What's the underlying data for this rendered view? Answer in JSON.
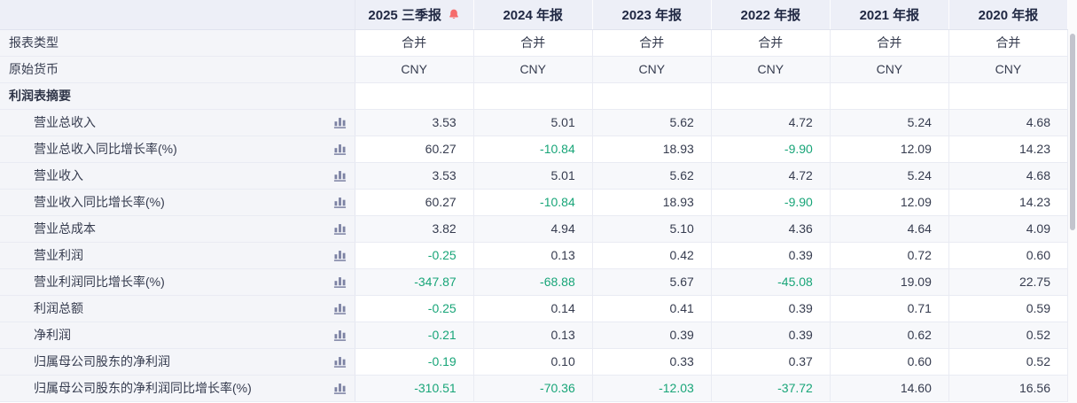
{
  "table": {
    "columns": [
      {
        "label": "2025 三季报",
        "has_alert": true
      },
      {
        "label": "2024 年报",
        "has_alert": false
      },
      {
        "label": "2023 年报",
        "has_alert": false
      },
      {
        "label": "2022 年报",
        "has_alert": false
      },
      {
        "label": "2021 年报",
        "has_alert": false
      },
      {
        "label": "2020 年报",
        "has_alert": false
      }
    ],
    "rows": [
      {
        "type": "info",
        "label": "报表类型",
        "values": [
          "合并",
          "合并",
          "合并",
          "合并",
          "合并",
          "合并"
        ]
      },
      {
        "type": "info",
        "label": "原始货币",
        "values": [
          "CNY",
          "CNY",
          "CNY",
          "CNY",
          "CNY",
          "CNY"
        ]
      },
      {
        "type": "section",
        "label": "利润表摘要",
        "values": [
          "",
          "",
          "",
          "",
          "",
          ""
        ]
      },
      {
        "type": "metric",
        "label": "营业总收入",
        "values": [
          "3.53",
          "5.01",
          "5.62",
          "4.72",
          "5.24",
          "4.68"
        ]
      },
      {
        "type": "metric",
        "label": "营业总收入同比增长率(%)",
        "values": [
          "60.27",
          "-10.84",
          "18.93",
          "-9.90",
          "12.09",
          "14.23"
        ]
      },
      {
        "type": "metric",
        "label": "营业收入",
        "values": [
          "3.53",
          "5.01",
          "5.62",
          "4.72",
          "5.24",
          "4.68"
        ]
      },
      {
        "type": "metric",
        "label": "营业收入同比增长率(%)",
        "values": [
          "60.27",
          "-10.84",
          "18.93",
          "-9.90",
          "12.09",
          "14.23"
        ]
      },
      {
        "type": "metric",
        "label": "营业总成本",
        "values": [
          "3.82",
          "4.94",
          "5.10",
          "4.36",
          "4.64",
          "4.09"
        ]
      },
      {
        "type": "metric",
        "label": "营业利润",
        "values": [
          "-0.25",
          "0.13",
          "0.42",
          "0.39",
          "0.72",
          "0.60"
        ]
      },
      {
        "type": "metric",
        "label": "营业利润同比增长率(%)",
        "values": [
          "-347.87",
          "-68.88",
          "5.67",
          "-45.08",
          "19.09",
          "22.75"
        ]
      },
      {
        "type": "metric",
        "label": "利润总额",
        "values": [
          "-0.25",
          "0.14",
          "0.41",
          "0.39",
          "0.71",
          "0.59"
        ]
      },
      {
        "type": "metric",
        "label": "净利润",
        "values": [
          "-0.21",
          "0.13",
          "0.39",
          "0.39",
          "0.62",
          "0.52"
        ]
      },
      {
        "type": "metric",
        "label": "归属母公司股东的净利润",
        "values": [
          "-0.19",
          "0.10",
          "0.33",
          "0.37",
          "0.60",
          "0.52"
        ]
      },
      {
        "type": "metric",
        "label": "归属母公司股东的净利润同比增长率(%)",
        "values": [
          "-310.51",
          "-70.36",
          "-12.03",
          "-37.72",
          "14.60",
          "16.56"
        ]
      }
    ],
    "icons": {
      "alert_bell": "alert-bell-icon",
      "row_chart": "bar-chart-icon"
    },
    "colors": {
      "negative_value": "#18a578",
      "alert_bell": "#f56c6c",
      "chart_icon": "#7c82a3",
      "header_text": "#1f2742"
    }
  }
}
